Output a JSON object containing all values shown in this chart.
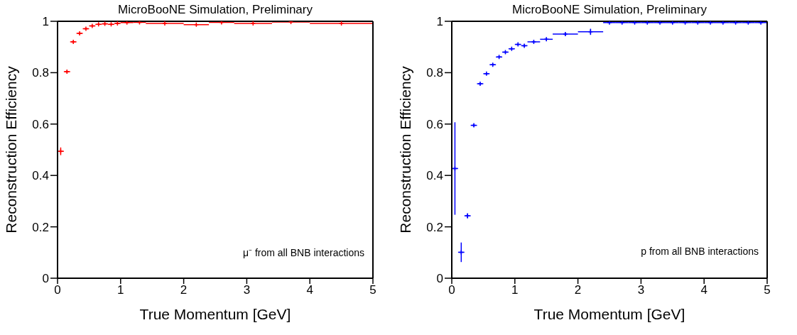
{
  "chart_data": [
    {
      "type": "scatter",
      "title": "MicroBooNE Simulation, Preliminary",
      "xlabel": "True Momentum [GeV]",
      "ylabel": "Reconstruction Efficiency",
      "annotations": [
        "μ⁻ from all BNB interactions"
      ],
      "marker": "cross",
      "grid": false,
      "xlim": [
        0,
        5
      ],
      "ylim": [
        0,
        1
      ],
      "xticks": [
        0,
        1,
        2,
        3,
        4,
        5
      ],
      "yticks": [
        0,
        0.2,
        0.4,
        0.6,
        0.8,
        1
      ],
      "series": [
        {
          "color": "#ff0000",
          "x": [
            0.05,
            0.15,
            0.25,
            0.35,
            0.45,
            0.55,
            0.65,
            0.75,
            0.85,
            0.95,
            1.1,
            1.3,
            1.7,
            2.2,
            2.6,
            3.1,
            3.7,
            4.5
          ],
          "values": [
            0.494,
            0.804,
            0.92,
            0.953,
            0.971,
            0.982,
            0.988,
            0.99,
            0.988,
            0.992,
            0.995,
            0.996,
            0.992,
            0.987,
            0.996,
            0.992,
            0.997,
            0.992
          ],
          "errors": [
            0.015,
            0.006,
            0.004,
            0.004,
            0.003,
            0.003,
            0.003,
            0.003,
            0.003,
            0.003,
            0.003,
            0.003,
            0.003,
            0.003,
            0.003,
            0.003,
            0.003,
            0.003
          ],
          "xerrors": [
            0.05,
            0.05,
            0.05,
            0.05,
            0.05,
            0.05,
            0.05,
            0.05,
            0.05,
            0.05,
            0.1,
            0.1,
            0.3,
            0.2,
            0.2,
            0.3,
            0.3,
            0.5
          ]
        }
      ]
    },
    {
      "type": "scatter",
      "title": "MicroBooNE Simulation, Preliminary",
      "xlabel": "True Momentum [GeV]",
      "ylabel": "Reconstruction Efficiency",
      "annotations": [
        "p from all BNB interactions"
      ],
      "marker": "cross",
      "grid": false,
      "xlim": [
        0,
        5
      ],
      "ylim": [
        0,
        1
      ],
      "xticks": [
        0,
        1,
        2,
        3,
        4,
        5
      ],
      "yticks": [
        0,
        0.2,
        0.4,
        0.6,
        0.8,
        1
      ],
      "series": [
        {
          "color": "#0000ff",
          "x": [
            0.05,
            0.15,
            0.25,
            0.35,
            0.45,
            0.55,
            0.65,
            0.75,
            0.85,
            0.95,
            1.05,
            1.15,
            1.3,
            1.5,
            1.8,
            2.2,
            2.5,
            2.7,
            2.9,
            3.1,
            3.3,
            3.5,
            3.7,
            3.9,
            4.1,
            4.3,
            4.5,
            4.7,
            4.9
          ],
          "values": [
            0.427,
            0.101,
            0.243,
            0.595,
            0.757,
            0.796,
            0.831,
            0.861,
            0.88,
            0.893,
            0.91,
            0.905,
            0.92,
            0.93,
            0.95,
            0.959,
            0.995,
            0.995,
            0.995,
            0.995,
            0.995,
            0.995,
            0.995,
            0.995,
            0.995,
            0.995,
            0.995,
            0.995,
            0.995
          ],
          "errors": [
            0.18,
            0.038,
            0.01,
            0.005,
            0.004,
            0.004,
            0.004,
            0.004,
            0.004,
            0.004,
            0.004,
            0.005,
            0.004,
            0.005,
            0.006,
            0.012,
            0.002,
            0.002,
            0.002,
            0.002,
            0.002,
            0.002,
            0.002,
            0.002,
            0.002,
            0.002,
            0.002,
            0.002,
            0.002
          ],
          "xerrors": [
            0.05,
            0.05,
            0.05,
            0.05,
            0.05,
            0.05,
            0.05,
            0.05,
            0.05,
            0.05,
            0.05,
            0.05,
            0.1,
            0.1,
            0.2,
            0.2,
            0.1,
            0.1,
            0.1,
            0.1,
            0.1,
            0.1,
            0.1,
            0.1,
            0.1,
            0.1,
            0.1,
            0.1,
            0.1
          ]
        }
      ]
    }
  ]
}
